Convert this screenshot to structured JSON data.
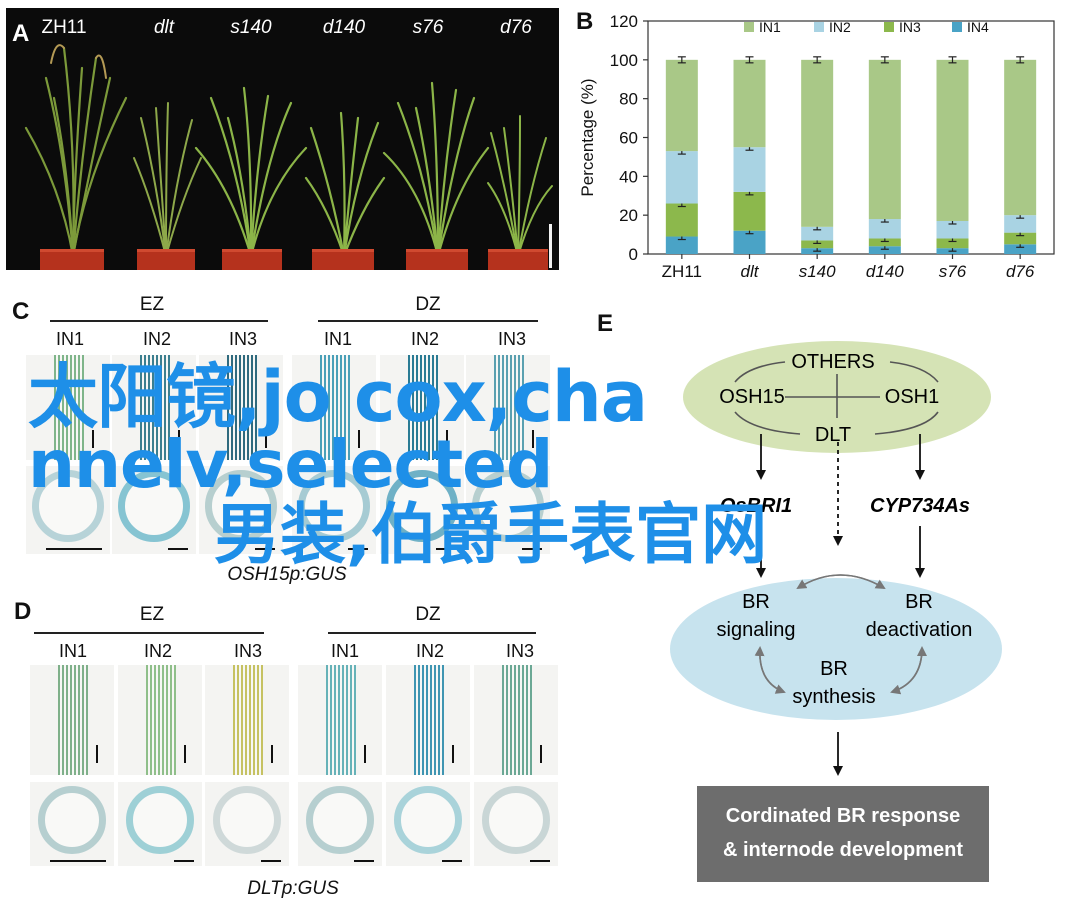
{
  "panels": {
    "A": {
      "letter": "A",
      "lines": [
        "ZH11",
        "dlt",
        "s140",
        "d140",
        "s76",
        "d76"
      ]
    },
    "B": {
      "letter": "B"
    },
    "C": {
      "letter": "C",
      "groups": [
        "EZ",
        "DZ"
      ],
      "columns": [
        "IN1",
        "IN2",
        "IN3",
        "IN1",
        "IN2",
        "IN3"
      ],
      "caption": "OSH15p:GUS"
    },
    "D": {
      "letter": "D",
      "groups": [
        "EZ",
        "DZ"
      ],
      "columns": [
        "IN1",
        "IN2",
        "IN3",
        "IN1",
        "IN2",
        "IN3"
      ],
      "caption": "DLTp:GUS"
    },
    "E": {
      "letter": "E",
      "top_node": "OTHERS",
      "left_node": "OSH15",
      "right_node": "OSH1",
      "bottom_node": "DLT",
      "left_gene": "OsBRI1",
      "right_gene": "CYP734As",
      "signaling": [
        "BR",
        "signaling"
      ],
      "deactivation": [
        "BR",
        "deactivation"
      ],
      "synthesis": [
        "BR",
        "synthesis"
      ],
      "output": [
        "Cordinated BR response",
        "& internode development"
      ]
    }
  },
  "watermark": {
    "line1": "太阳镜,jo cox,cha",
    "line2": "nnelv,selected",
    "line3": "男装,伯爵手表官网"
  },
  "chart_data": {
    "type": "bar",
    "stacked": true,
    "categories": [
      "ZH11",
      "dlt",
      "s140",
      "d140",
      "s76",
      "d76"
    ],
    "ylabel": "Percentage (%)",
    "ylim": [
      0,
      120
    ],
    "yticks": [
      "0",
      "20",
      "40",
      "60",
      "80",
      "100",
      "120"
    ],
    "legend_position": "top",
    "series": [
      {
        "name": "IN4",
        "color": "#4aa3c6",
        "values": [
          9,
          12,
          3,
          4,
          3,
          5
        ]
      },
      {
        "name": "IN3",
        "color": "#8cb84c",
        "values": [
          17,
          20,
          4,
          4,
          5,
          6
        ]
      },
      {
        "name": "IN2",
        "color": "#a9d3e3",
        "values": [
          27,
          23,
          7,
          10,
          9,
          9
        ]
      },
      {
        "name": "IN1",
        "color": "#a9c887",
        "values": [
          47,
          45,
          86,
          82,
          83,
          80
        ]
      }
    ],
    "legend_order": [
      "IN1",
      "IN2",
      "IN3",
      "IN4"
    ]
  }
}
